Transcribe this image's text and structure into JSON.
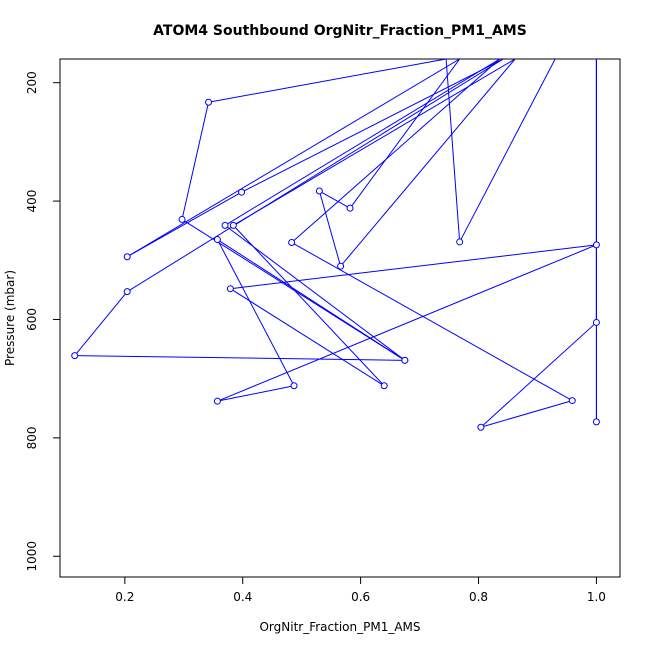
{
  "chart_data": {
    "type": "line",
    "title": "ATOM4 Southbound OrgNitr_Fraction_PM1_AMS",
    "xlabel": "OrgNitr_Fraction_PM1_AMS",
    "ylabel": "Pressure (mbar)",
    "xlim": [
      0.09,
      1.04
    ],
    "ylim": [
      1035,
      160
    ],
    "xticks": [
      0.2,
      0.4,
      0.6,
      0.8,
      1.0
    ],
    "xtick_labels": [
      "0.2",
      "0.4",
      "0.6",
      "0.8",
      "1.0"
    ],
    "yticks": [
      200,
      400,
      600,
      800,
      1000
    ],
    "ytick_labels": [
      "200",
      "400",
      "600",
      "800",
      "1000"
    ],
    "grid": false,
    "series_color": "#0000ff",
    "points": [
      {
        "x": 1.0,
        "y": 160
      },
      {
        "x": 1.0,
        "y": 773
      },
      {
        "x": 1.0,
        "y": 160
      },
      {
        "x": 1.0,
        "y": 605
      },
      {
        "x": 0.804,
        "y": 782
      },
      {
        "x": 0.959,
        "y": 737
      },
      {
        "x": 0.483,
        "y": 470
      },
      {
        "x": 0.836,
        "y": 160
      },
      {
        "x": 0.37,
        "y": 441
      },
      {
        "x": 0.675,
        "y": 669
      },
      {
        "x": 0.357,
        "y": 465
      },
      {
        "x": 0.487,
        "y": 712
      },
      {
        "x": 0.357,
        "y": 738
      },
      {
        "x": 1.0,
        "y": 474
      },
      {
        "x": 0.379,
        "y": 548
      },
      {
        "x": 0.64,
        "y": 712
      },
      {
        "x": 0.384,
        "y": 441
      },
      {
        "x": 0.862,
        "y": 160
      },
      {
        "x": 0.566,
        "y": 510
      },
      {
        "x": 0.53,
        "y": 383
      },
      {
        "x": 0.582,
        "y": 412
      },
      {
        "x": 0.768,
        "y": 160
      },
      {
        "x": 0.204,
        "y": 494
      },
      {
        "x": 0.398,
        "y": 385
      },
      {
        "x": 0.842,
        "y": 160
      },
      {
        "x": 0.204,
        "y": 553
      },
      {
        "x": 0.115,
        "y": 661
      },
      {
        "x": 0.675,
        "y": 669
      },
      {
        "x": 0.297,
        "y": 431
      },
      {
        "x": 0.342,
        "y": 233
      },
      {
        "x": 0.745,
        "y": 160
      },
      {
        "x": 0.768,
        "y": 469
      },
      {
        "x": 0.93,
        "y": 160
      }
    ]
  }
}
